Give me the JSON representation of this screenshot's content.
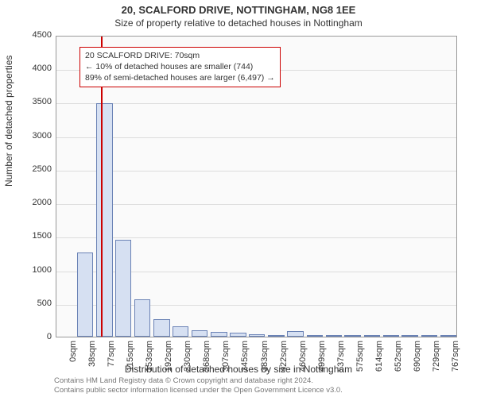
{
  "chart": {
    "type": "histogram",
    "title_main": "20, SCALFORD DRIVE, NOTTINGHAM, NG8 1EE",
    "title_sub": "Size of property relative to detached houses in Nottingham",
    "xlabel": "Distribution of detached houses by size in Nottingham",
    "ylabel": "Number of detached properties",
    "background_color": "#fafafa",
    "plot_border_color": "#999999",
    "grid_color": "#dddddd",
    "bar_fill": "#d6e0f2",
    "bar_stroke": "#6a82b5",
    "refline_color": "#cc0000",
    "ylim": [
      0,
      4500
    ],
    "ytick_step": 500,
    "xticks": [
      "0sqm",
      "38sqm",
      "77sqm",
      "115sqm",
      "153sqm",
      "192sqm",
      "230sqm",
      "268sqm",
      "307sqm",
      "345sqm",
      "383sqm",
      "422sqm",
      "460sqm",
      "499sqm",
      "537sqm",
      "575sqm",
      "614sqm",
      "652sqm",
      "690sqm",
      "729sqm",
      "767sqm"
    ],
    "ref_sqm": 70,
    "xmax_sqm": 767,
    "bars": [
      {
        "sqm": 38,
        "count": 1250
      },
      {
        "sqm": 77,
        "count": 3480
      },
      {
        "sqm": 115,
        "count": 1440
      },
      {
        "sqm": 153,
        "count": 560
      },
      {
        "sqm": 192,
        "count": 260
      },
      {
        "sqm": 230,
        "count": 150
      },
      {
        "sqm": 268,
        "count": 90
      },
      {
        "sqm": 307,
        "count": 70
      },
      {
        "sqm": 345,
        "count": 55
      },
      {
        "sqm": 383,
        "count": 40
      },
      {
        "sqm": 422,
        "count": 20
      },
      {
        "sqm": 460,
        "count": 80
      },
      {
        "sqm": 499,
        "count": 12
      },
      {
        "sqm": 537,
        "count": 8
      },
      {
        "sqm": 575,
        "count": 5
      },
      {
        "sqm": 614,
        "count": 4
      },
      {
        "sqm": 652,
        "count": 3
      },
      {
        "sqm": 690,
        "count": 2
      },
      {
        "sqm": 729,
        "count": 2
      },
      {
        "sqm": 767,
        "count": 2
      }
    ],
    "info_box": {
      "line1": "20 SCALFORD DRIVE: 70sqm",
      "line2": "← 10% of detached houses are smaller (744)",
      "line3": "89% of semi-detached houses are larger (6,497) →"
    },
    "footer": {
      "line1": "Contains HM Land Registry data © Crown copyright and database right 2024.",
      "line2": "Contains public sector information licensed under the Open Government Licence v3.0."
    }
  }
}
